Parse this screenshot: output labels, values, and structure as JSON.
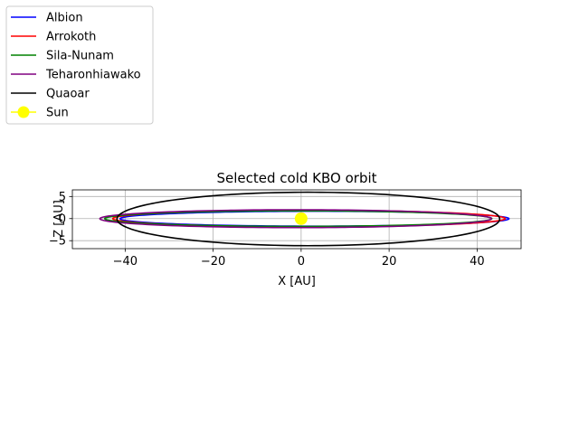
{
  "chart_data": {
    "type": "line",
    "title": "Selected cold KBO orbit",
    "xlabel": "X [AU]",
    "ylabel": "Z [AU]",
    "xlim": [
      -52,
      50
    ],
    "ylim": [
      -6.8,
      6.5
    ],
    "xticks": [
      -40,
      -20,
      0,
      20,
      40
    ],
    "yticks": [
      -5,
      0,
      5
    ],
    "xtick_labels": [
      "−40",
      "−20",
      "0",
      "20",
      "40"
    ],
    "ytick_labels": [
      "−5",
      "0",
      "5"
    ],
    "grid": true,
    "legend_position": "top-left, outside the axes",
    "series": [
      {
        "name": "Albion",
        "color": "#0000ff",
        "kind": "orbit",
        "orbit": {
          "a": 44.2,
          "e": 0.07,
          "inc_deg": 2.2,
          "perihelion_lon_deg": 170
        }
      },
      {
        "name": "Arrokoth",
        "color": "#ff0000",
        "kind": "orbit",
        "orbit": {
          "a": 44.6,
          "e": 0.04,
          "inc_deg": 2.4,
          "perihelion_lon_deg": 185
        }
      },
      {
        "name": "Sila-Nunam",
        "color": "#008000",
        "kind": "orbit",
        "orbit": {
          "a": 44.0,
          "e": 0.015,
          "inc_deg": 2.3,
          "perihelion_lon_deg": 10
        }
      },
      {
        "name": "Teharonhiawako",
        "color": "#800080",
        "kind": "orbit",
        "orbit": {
          "a": 44.5,
          "e": 0.03,
          "inc_deg": 2.6,
          "perihelion_lon_deg": 20
        }
      },
      {
        "name": "Quaoar",
        "color": "#000000",
        "kind": "orbit",
        "orbit": {
          "a": 43.5,
          "e": 0.04,
          "inc_deg": 8.0,
          "perihelion_lon_deg": 160
        }
      },
      {
        "name": "Sun",
        "color": "#ffff00",
        "kind": "marker",
        "x": [
          0
        ],
        "y": [
          0
        ]
      }
    ]
  }
}
